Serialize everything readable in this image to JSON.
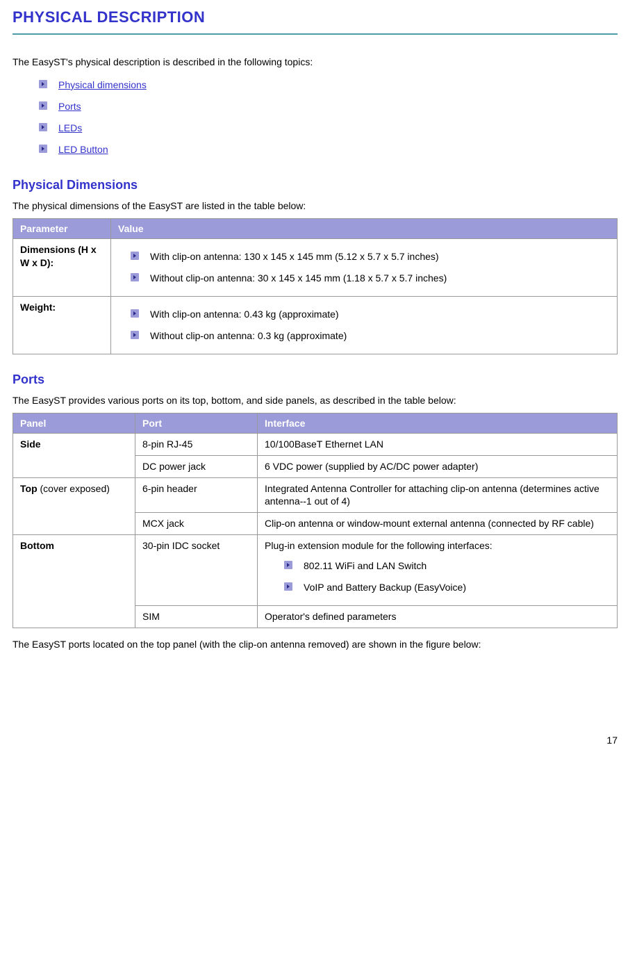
{
  "title": "PHYSICAL DESCRIPTION",
  "intro": "The EasyST's physical description is described in the following topics:",
  "toc": [
    {
      "label": "Physical dimensions"
    },
    {
      "label": "Ports"
    },
    {
      "label": "LEDs"
    },
    {
      "label": "LED Button"
    }
  ],
  "dimensions": {
    "heading": "Physical Dimensions",
    "intro": "The physical dimensions of the EasyST are listed in the table below:",
    "headers": {
      "parameter": "Parameter",
      "value": "Value"
    },
    "rows": [
      {
        "param": "Dimensions (H x W x D):",
        "items": [
          "With clip-on antenna: 130 x 145 x 145 mm (5.12 x 5.7 x 5.7 inches)",
          "Without clip-on antenna: 30 x 145 x 145 mm (1.18 x 5.7 x 5.7 inches)"
        ]
      },
      {
        "param": "Weight:",
        "items": [
          "With clip-on antenna: 0.43 kg (approximate)",
          "Without clip-on antenna: 0.3 kg (approximate)"
        ]
      }
    ]
  },
  "ports": {
    "heading": "Ports",
    "intro": "The EasyST provides various ports on its top, bottom, and side panels, as described in the table below:",
    "headers": {
      "panel": "Panel",
      "port": "Port",
      "interface": "Interface"
    },
    "rows": [
      {
        "panel_bold": "Side",
        "panel_rest": "",
        "rowspan": 2,
        "port": "8-pin RJ-45",
        "iface_text": "10/100BaseT Ethernet LAN"
      },
      {
        "port": "DC power jack",
        "iface_text": "6 VDC power (supplied by AC/DC power adapter)"
      },
      {
        "panel_bold": "Top",
        "panel_rest": " (cover exposed)",
        "rowspan": 2,
        "port": "6-pin header",
        "iface_text": "Integrated Antenna Controller for attaching clip-on antenna (determines active antenna--1 out of 4)"
      },
      {
        "port": "MCX jack",
        "iface_text": "Clip-on antenna or window-mount external antenna (connected by RF cable)"
      },
      {
        "panel_bold": "Bottom",
        "panel_rest": "",
        "rowspan": 2,
        "port": "30-pin IDC socket",
        "iface_text": "Plug-in extension module for the following interfaces:",
        "iface_items": [
          "802.11 WiFi and LAN Switch",
          "VoIP and Battery Backup (EasyVoice)"
        ]
      },
      {
        "port": "SIM",
        "iface_text": "Operator's defined parameters"
      }
    ],
    "outro": "The EasyST ports located on the top panel (with the clip-on antenna removed) are shown in the figure below:"
  },
  "page_number": "17",
  "colors": {
    "heading": "#3333cc",
    "rule": "#4c9ba8",
    "table_header_bg": "#9b9bd9",
    "bullet_bg": "#9b9bd9",
    "bullet_arrow": "#2a2a8a"
  }
}
